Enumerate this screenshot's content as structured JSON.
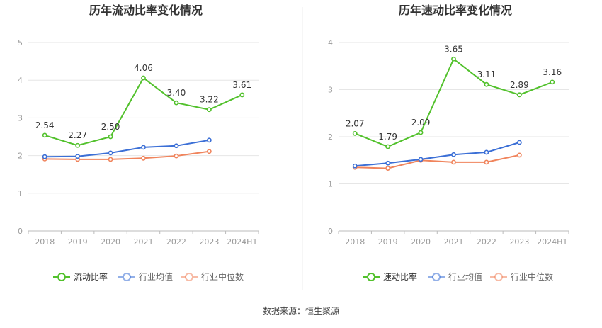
{
  "source": "数据来源：恒生聚源",
  "colors": {
    "main": "#52c12c",
    "avg": "#3b6fd6",
    "median": "#f0845c",
    "axis": "#999999",
    "grid": "#e6e6e6",
    "text": "#333333"
  },
  "chart_data": [
    {
      "type": "line",
      "title": "历年流动比率变化情况",
      "categories": [
        "2018",
        "2019",
        "2020",
        "2021",
        "2022",
        "2023",
        "2024H1"
      ],
      "yticks": [
        "0",
        "1",
        "2",
        "3",
        "4",
        "5"
      ],
      "ylim": [
        0,
        5
      ],
      "grid": true,
      "legend_position": "bottom",
      "series": [
        {
          "name": "流动比率",
          "values": [
            2.54,
            2.27,
            2.5,
            4.06,
            3.4,
            3.22,
            3.61
          ],
          "labels": [
            "2.54",
            "2.27",
            "2.50",
            "4.06",
            "3.40",
            "3.22",
            "3.61"
          ]
        },
        {
          "name": "行业均值",
          "values": [
            1.97,
            1.98,
            2.07,
            2.22,
            2.26,
            2.41,
            null
          ]
        },
        {
          "name": "行业中位数",
          "values": [
            1.91,
            1.9,
            1.9,
            1.93,
            1.99,
            2.11,
            null
          ]
        }
      ]
    },
    {
      "type": "line",
      "title": "历年速动比率变化情况",
      "categories": [
        "2018",
        "2019",
        "2020",
        "2021",
        "2022",
        "2023",
        "2024H1"
      ],
      "yticks": [
        "0",
        "1",
        "2",
        "3",
        "4"
      ],
      "ylim": [
        0,
        4
      ],
      "grid": true,
      "legend_position": "bottom",
      "series": [
        {
          "name": "速动比率",
          "values": [
            2.07,
            1.79,
            2.09,
            3.65,
            3.11,
            2.89,
            3.16
          ],
          "labels": [
            "2.07",
            "1.79",
            "2.09",
            "3.65",
            "3.11",
            "2.89",
            "3.16"
          ]
        },
        {
          "name": "行业均值",
          "values": [
            1.38,
            1.44,
            1.52,
            1.62,
            1.67,
            1.88,
            null
          ]
        },
        {
          "name": "行业中位数",
          "values": [
            1.35,
            1.33,
            1.5,
            1.46,
            1.46,
            1.61,
            null
          ]
        }
      ]
    }
  ]
}
